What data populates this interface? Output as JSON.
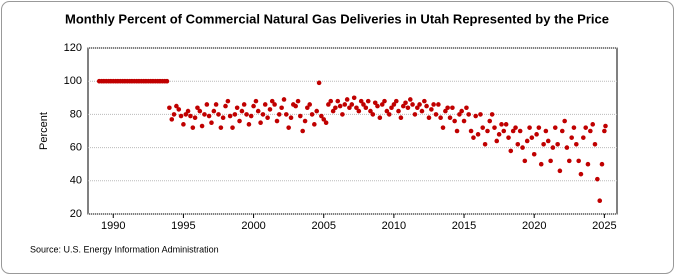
{
  "chart_data": {
    "type": "scatter",
    "title": "Monthly Percent of Commercial Natural Gas Deliveries in Utah Represented by the Price",
    "y_label": "Percent",
    "source": "Source: U.S. Energy Information Administration",
    "xlim": [
      1988.2,
      2025.9
    ],
    "xticks": [
      1990,
      1995,
      2000,
      2005,
      2010,
      2015,
      2020,
      2025
    ],
    "ylim": [
      20,
      120
    ],
    "yticks": [
      20,
      40,
      60,
      80,
      100,
      120
    ],
    "grid": true,
    "series": [
      {
        "color": "#c00000",
        "x": [
          1989,
          1989.17,
          1989.33,
          1989.5,
          1989.67,
          1989.83,
          1990,
          1990.17,
          1990.33,
          1990.5,
          1990.67,
          1990.83,
          1991,
          1991.17,
          1991.33,
          1991.5,
          1991.67,
          1991.83,
          1992,
          1992.17,
          1992.33,
          1992.5,
          1992.67,
          1992.83,
          1993,
          1993.17,
          1993.33,
          1993.5,
          1993.67,
          1993.83,
          1994,
          1994.17,
          1994.33,
          1994.5,
          1994.67,
          1994.83,
          1995,
          1995.17,
          1995.33,
          1995.5,
          1995.67,
          1995.83,
          1996,
          1996.17,
          1996.33,
          1996.5,
          1996.67,
          1996.83,
          1997,
          1997.17,
          1997.33,
          1997.5,
          1997.67,
          1997.83,
          1998,
          1998.17,
          1998.33,
          1998.5,
          1998.67,
          1998.83,
          1999,
          1999.17,
          1999.33,
          1999.5,
          1999.67,
          1999.83,
          2000,
          2000.17,
          2000.33,
          2000.5,
          2000.67,
          2000.83,
          2001,
          2001.17,
          2001.33,
          2001.5,
          2001.67,
          2001.83,
          2002,
          2002.17,
          2002.33,
          2002.5,
          2002.67,
          2002.83,
          2003,
          2003.17,
          2003.33,
          2003.5,
          2003.67,
          2003.83,
          2004,
          2004.17,
          2004.33,
          2004.5,
          2004.67,
          2004.83,
          2005,
          2005.17,
          2005.33,
          2005.5,
          2005.67,
          2005.83,
          2006,
          2006.17,
          2006.33,
          2006.5,
          2006.67,
          2006.83,
          2007,
          2007.17,
          2007.33,
          2007.5,
          2007.67,
          2007.83,
          2008,
          2008.17,
          2008.33,
          2008.5,
          2008.67,
          2008.83,
          2009,
          2009.17,
          2009.33,
          2009.5,
          2009.67,
          2009.83,
          2010,
          2010.17,
          2010.33,
          2010.5,
          2010.67,
          2010.83,
          2011,
          2011.17,
          2011.33,
          2011.5,
          2011.67,
          2011.83,
          2012,
          2012.17,
          2012.33,
          2012.5,
          2012.67,
          2012.83,
          2013,
          2013.17,
          2013.33,
          2013.5,
          2013.67,
          2013.83,
          2014,
          2014.17,
          2014.33,
          2014.5,
          2014.67,
          2014.83,
          2015,
          2015.17,
          2015.33,
          2015.5,
          2015.67,
          2015.83,
          2016,
          2016.17,
          2016.33,
          2016.5,
          2016.67,
          2016.83,
          2017,
          2017.17,
          2017.33,
          2017.5,
          2017.67,
          2017.83,
          2018,
          2018.17,
          2018.33,
          2018.5,
          2018.67,
          2018.83,
          2019,
          2019.17,
          2019.33,
          2019.5,
          2019.67,
          2019.83,
          2020,
          2020.17,
          2020.33,
          2020.5,
          2020.67,
          2020.83,
          2021,
          2021.17,
          2021.33,
          2021.5,
          2021.67,
          2021.83,
          2022,
          2022.17,
          2022.33,
          2022.5,
          2022.67,
          2022.83,
          2023,
          2023.17,
          2023.33,
          2023.5,
          2023.67,
          2023.83,
          2024,
          2024.17,
          2024.33,
          2024.5,
          2024.67,
          2024.83,
          2025,
          2025.08
        ],
        "values": [
          100,
          100,
          100,
          100,
          100,
          100,
          100,
          100,
          100,
          100,
          100,
          100,
          100,
          100,
          100,
          100,
          100,
          100,
          100,
          100,
          100,
          100,
          100,
          100,
          100,
          100,
          100,
          100,
          100,
          100,
          84,
          77,
          80,
          85,
          83,
          79,
          74,
          80,
          82,
          79,
          72,
          78,
          84,
          82,
          73,
          80,
          86,
          79,
          75,
          82,
          86,
          80,
          72,
          78,
          85,
          88,
          79,
          72,
          80,
          84,
          76,
          82,
          86,
          80,
          74,
          79,
          85,
          88,
          82,
          75,
          80,
          86,
          78,
          83,
          88,
          86,
          76,
          80,
          84,
          89,
          80,
          72,
          78,
          86,
          85,
          88,
          79,
          70,
          76,
          84,
          86,
          80,
          74,
          82,
          99,
          79,
          77,
          75,
          86,
          88,
          82,
          84,
          88,
          85,
          80,
          86,
          89,
          84,
          86,
          90,
          84,
          82,
          88,
          86,
          84,
          88,
          82,
          80,
          87,
          85,
          78,
          86,
          88,
          82,
          80,
          84,
          86,
          88,
          82,
          78,
          85,
          87,
          84,
          89,
          86,
          80,
          84,
          86,
          82,
          88,
          85,
          78,
          83,
          86,
          80,
          86,
          78,
          72,
          82,
          84,
          78,
          84,
          76,
          70,
          80,
          82,
          76,
          84,
          80,
          70,
          66,
          79,
          68,
          80,
          72,
          62,
          70,
          76,
          80,
          72,
          64,
          68,
          74,
          70,
          74,
          66,
          58,
          70,
          72,
          62,
          70,
          60,
          52,
          64,
          72,
          66,
          56,
          68,
          72,
          50,
          62,
          70,
          64,
          52,
          60,
          72,
          62,
          46,
          70,
          76,
          60,
          52,
          66,
          72,
          62,
          52,
          44,
          66,
          72,
          50,
          70,
          74,
          62,
          41,
          28,
          50,
          70,
          73
        ]
      }
    ]
  }
}
